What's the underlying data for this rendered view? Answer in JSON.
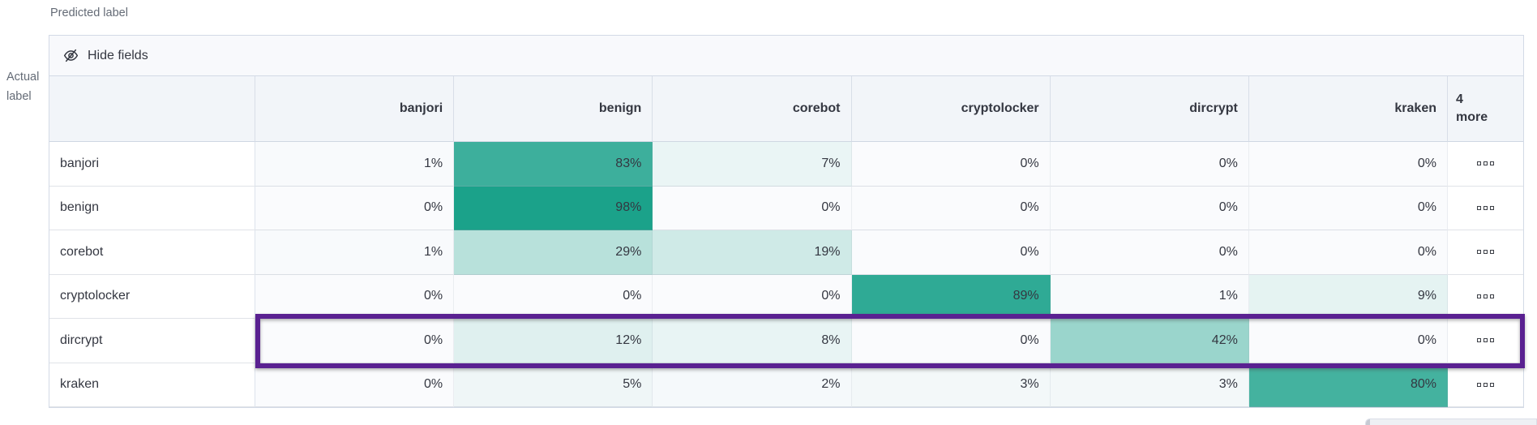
{
  "axis_labels": {
    "predicted": "Predicted label",
    "actual": [
      "Actual",
      "label"
    ]
  },
  "toolbar": {
    "hide_fields": "Hide fields",
    "icon": "eye-closed-icon"
  },
  "chart_data": {
    "type": "heatmap",
    "columns": [
      "banjori",
      "benign",
      "corebot",
      "cryptolocker",
      "dircrypt",
      "kraken"
    ],
    "overflow_column": {
      "count": "4",
      "label": "more"
    },
    "rows": [
      {
        "label": "banjori",
        "values": [
          1,
          83,
          7,
          0,
          0,
          0
        ],
        "highlighted": false
      },
      {
        "label": "benign",
        "values": [
          0,
          98,
          0,
          0,
          0,
          0
        ],
        "highlighted": false
      },
      {
        "label": "corebot",
        "values": [
          1,
          29,
          19,
          0,
          0,
          0
        ],
        "highlighted": false
      },
      {
        "label": "cryptolocker",
        "values": [
          0,
          0,
          0,
          89,
          1,
          9
        ],
        "highlighted": false
      },
      {
        "label": "dircrypt",
        "values": [
          0,
          12,
          8,
          0,
          42,
          0
        ],
        "highlighted": true
      },
      {
        "label": "kraken",
        "values": [
          0,
          5,
          2,
          3,
          3,
          80
        ],
        "highlighted": false
      }
    ],
    "value_suffix": "%",
    "row_actions_icon": "boxes-horizontal-icon",
    "colors": {
      "heat_low": "#fafbfd",
      "heat_high": "#16a088",
      "highlight_border": "#5a2191",
      "header_bg": "#f2f5f9",
      "toolbar_bg": "#f8f9fc",
      "grid_border": "#d3dae6",
      "text": "#343741",
      "muted_text": "#646b76"
    }
  }
}
